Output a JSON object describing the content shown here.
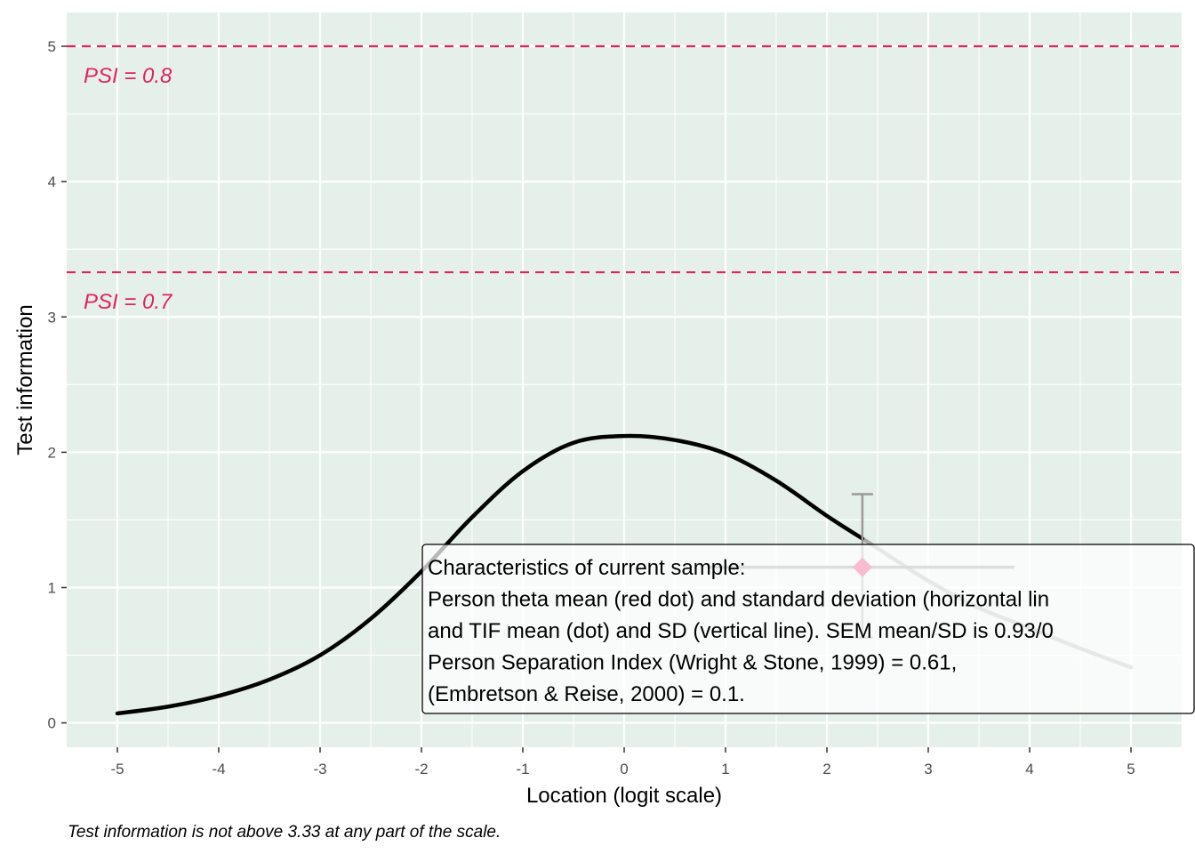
{
  "chart_data": {
    "type": "line",
    "xlabel": "Location (logit scale)",
    "ylabel": "Test information",
    "xlim": [
      -5.5,
      5.5
    ],
    "ylim": [
      -0.18,
      5.25
    ],
    "x_ticks": [
      "-5",
      "-4",
      "-3",
      "-2",
      "-1",
      "0",
      "1",
      "2",
      "3",
      "4",
      "5"
    ],
    "y_ticks": [
      "0",
      "1",
      "2",
      "3",
      "4",
      "5"
    ],
    "grid": true,
    "colors": {
      "panel": "#e5f0ea",
      "reference": "#e0245e",
      "curve": "#000000",
      "curve_beyond": "#aaaaaa",
      "person_point": "#f8bbd0",
      "tif_errorbar": "#999999",
      "sd_line": "#dddddd"
    },
    "series": [
      {
        "x": [
          -5,
          -4.5,
          -4,
          -3.5,
          -3,
          -2.5,
          -2,
          -1.5,
          -1,
          -0.5,
          0,
          0.5,
          1,
          1.5,
          2,
          2.5,
          3,
          3.5,
          4,
          4.5,
          5
        ],
        "y": [
          0.07,
          0.12,
          0.2,
          0.32,
          0.5,
          0.77,
          1.12,
          1.52,
          1.86,
          2.07,
          2.12,
          2.09,
          1.99,
          1.79,
          1.53,
          1.29,
          1.05,
          0.85,
          0.7,
          0.55,
          0.41
        ]
      }
    ],
    "reference_lines": [
      {
        "y": 5.0,
        "label": "PSI = 0.8"
      },
      {
        "y": 3.33,
        "label": "PSI = 0.7"
      }
    ],
    "person_mean": {
      "x": 2.35,
      "y": 1.15,
      "sd_low": 0.84,
      "sd_high": 3.85
    },
    "tif_errorbar": {
      "x": 2.35,
      "low": 0.63,
      "high": 1.69
    },
    "annotation_lines": [
      "Characteristics of current sample:",
      "Person theta mean (red dot) and standard deviation (horizontal lin",
      "and TIF mean (dot) and SD (vertical line). SEM mean/SD is 0.93/0",
      "Person Separation Index (Wright & Stone, 1999) = 0.61,",
      "(Embretson & Reise, 2000) = 0.1."
    ],
    "caption": "Test information is not above 3.33 at any part of the scale."
  }
}
